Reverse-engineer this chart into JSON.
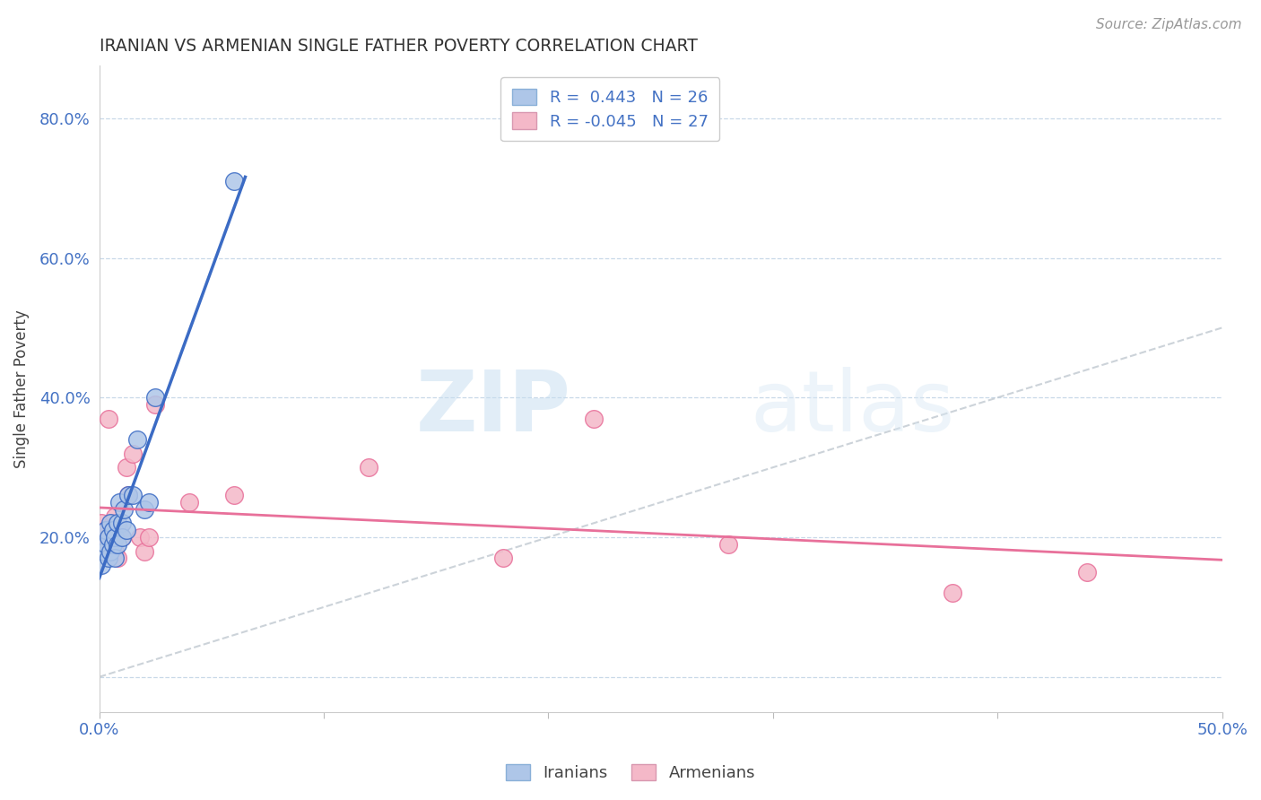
{
  "title": "IRANIAN VS ARMENIAN SINGLE FATHER POVERTY CORRELATION CHART",
  "source": "Source: ZipAtlas.com",
  "ylabel": "Single Father Poverty",
  "xlim": [
    0.0,
    0.5
  ],
  "ylim": [
    -0.05,
    0.875
  ],
  "xticks": [
    0.0,
    0.1,
    0.2,
    0.3,
    0.4,
    0.5
  ],
  "xticklabels": [
    "0.0%",
    "",
    "",
    "",
    "",
    "50.0%"
  ],
  "yticks": [
    0.0,
    0.2,
    0.4,
    0.6,
    0.8
  ],
  "yticklabels": [
    "",
    "20.0%",
    "40.0%",
    "60.0%",
    "80.0%"
  ],
  "iranian_R": 0.443,
  "iranian_N": 26,
  "armenian_R": -0.045,
  "armenian_N": 27,
  "iranian_color": "#aec6e8",
  "armenian_color": "#f4b8c8",
  "iranian_line_color": "#3b6bc4",
  "armenian_line_color": "#e8709a",
  "diagonal_color": "#c0c8d0",
  "watermark_zip": "ZIP",
  "watermark_atlas": "atlas",
  "iranians_x": [
    0.001,
    0.002,
    0.003,
    0.003,
    0.004,
    0.004,
    0.005,
    0.005,
    0.006,
    0.006,
    0.007,
    0.007,
    0.008,
    0.008,
    0.009,
    0.01,
    0.01,
    0.011,
    0.012,
    0.013,
    0.015,
    0.017,
    0.02,
    0.022,
    0.025,
    0.06
  ],
  "iranians_y": [
    0.16,
    0.18,
    0.19,
    0.21,
    0.17,
    0.2,
    0.18,
    0.22,
    0.19,
    0.21,
    0.17,
    0.2,
    0.19,
    0.22,
    0.25,
    0.22,
    0.2,
    0.24,
    0.21,
    0.26,
    0.26,
    0.34,
    0.24,
    0.25,
    0.4,
    0.71
  ],
  "armenians_x": [
    0.001,
    0.002,
    0.003,
    0.004,
    0.004,
    0.005,
    0.006,
    0.007,
    0.007,
    0.008,
    0.009,
    0.01,
    0.012,
    0.013,
    0.015,
    0.018,
    0.02,
    0.022,
    0.025,
    0.04,
    0.06,
    0.12,
    0.18,
    0.22,
    0.28,
    0.38,
    0.44
  ],
  "armenians_y": [
    0.22,
    0.2,
    0.21,
    0.19,
    0.37,
    0.2,
    0.22,
    0.18,
    0.23,
    0.17,
    0.21,
    0.2,
    0.3,
    0.26,
    0.32,
    0.2,
    0.18,
    0.2,
    0.39,
    0.25,
    0.26,
    0.3,
    0.17,
    0.37,
    0.19,
    0.12,
    0.15
  ],
  "background_color": "#ffffff"
}
